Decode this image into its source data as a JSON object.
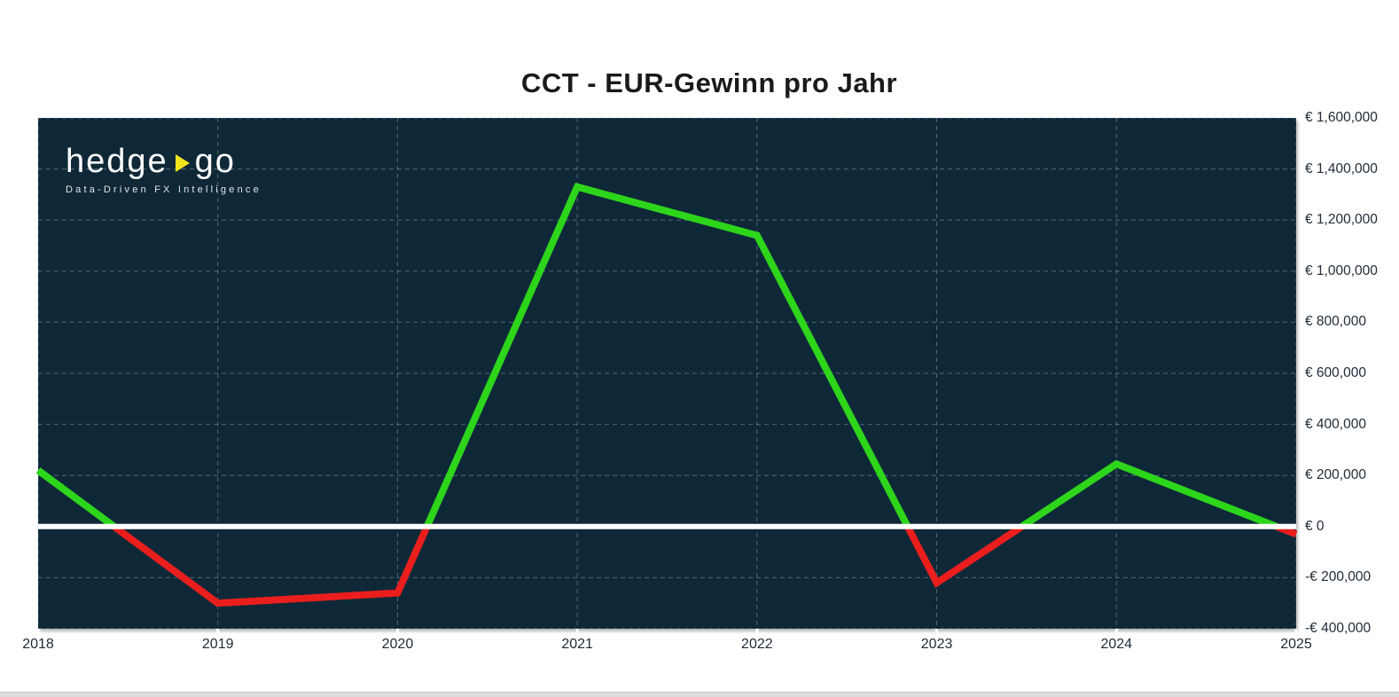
{
  "title": "CCT - EUR-Gewinn pro Jahr",
  "logo": {
    "word1": "hedge",
    "word2": "go",
    "triangle_icon_color": "#f2e41d",
    "tagline": "Data-Driven FX Intelligence"
  },
  "chart_data": {
    "type": "line",
    "title": "CCT - EUR-Gewinn pro Jahr",
    "categories": [
      "2018",
      "2019",
      "2020",
      "2021",
      "2022",
      "2023",
      "2024",
      "2025"
    ],
    "series": [
      {
        "name": "EUR-Gewinn pro Jahr",
        "values": [
          220000,
          -300000,
          -260000,
          1330000,
          1140000,
          -220000,
          245000,
          -30000
        ]
      }
    ],
    "ylim": [
      -400000,
      1600000
    ],
    "ytick_step": 200000,
    "ytick_labels_top_to_bottom": [
      "€ 1,600,000",
      "€ 1,400,000",
      "€ 1,200,000",
      "€ 1,000,000",
      "€ 800,000",
      "€ 600,000",
      "€ 400,000",
      "€ 200,000",
      "€ 0",
      "-€ 200,000",
      "-€ 400,000"
    ],
    "xlabel": "",
    "ylabel": "",
    "grid": "dashed",
    "legend": "none",
    "zero_line": true,
    "colors": {
      "positive_line": "#2dd51b",
      "negative_line": "#ea1e1c",
      "zero_line": "#ffffff",
      "plot_background": "#0f2838",
      "gridline": "rgba(190,205,215,0.38)",
      "axis_text": "#202c38"
    }
  }
}
